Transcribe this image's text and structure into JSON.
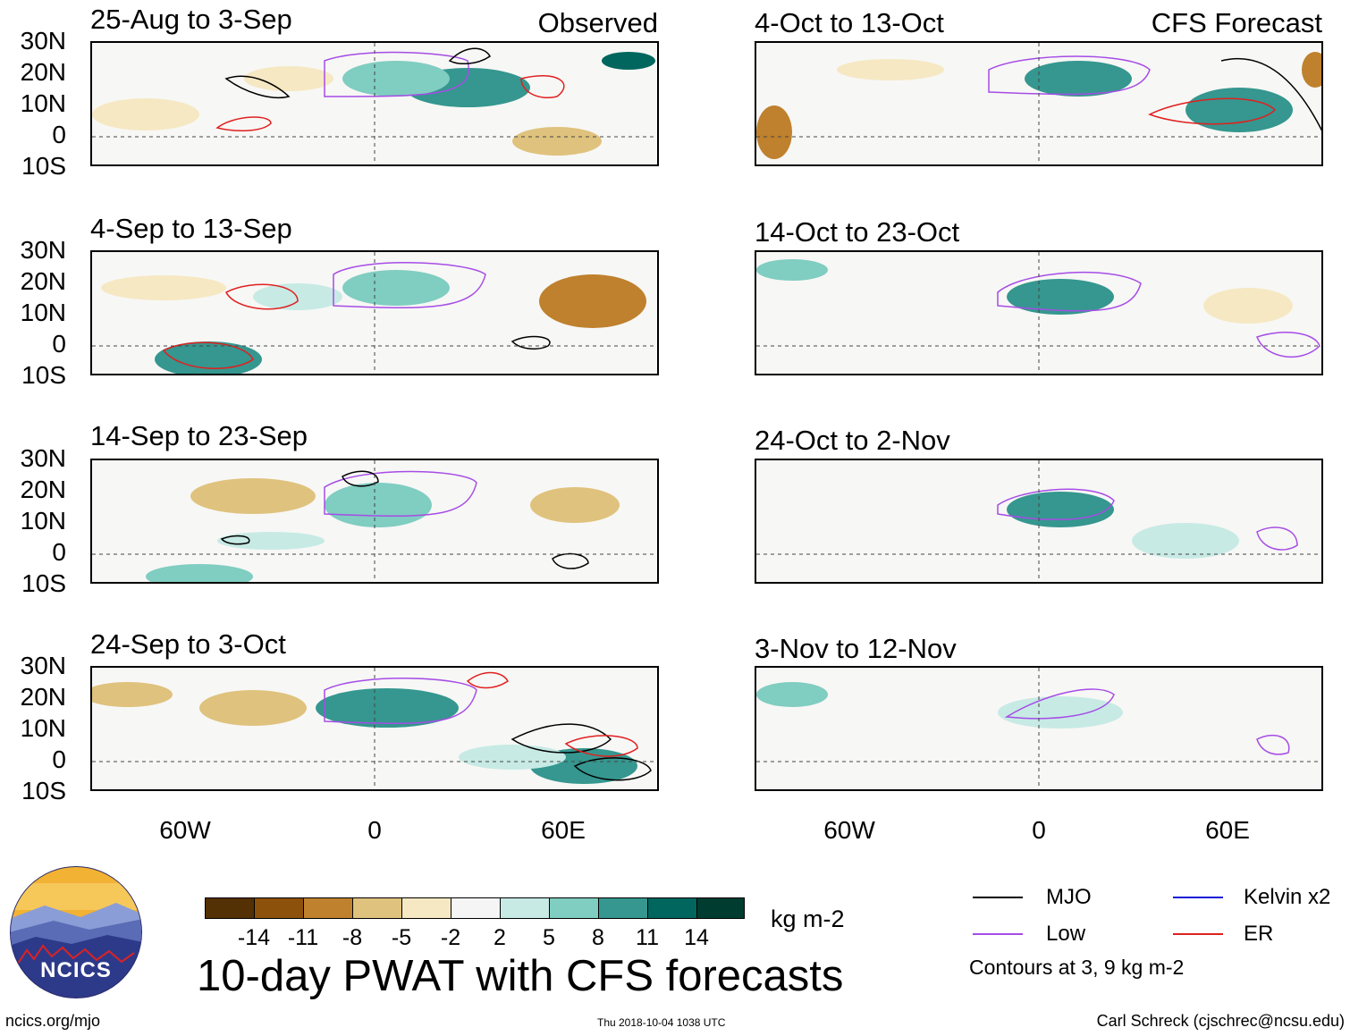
{
  "header": {
    "observed_label": "Observed",
    "forecast_label": "CFS Forecast"
  },
  "panels": {
    "left": [
      "25-Aug to 3-Sep",
      "4-Sep to 13-Sep",
      "14-Sep to 23-Sep",
      "24-Sep to 3-Oct"
    ],
    "right": [
      "4-Oct to 13-Oct",
      "14-Oct to 23-Oct",
      "24-Oct to 2-Nov",
      "3-Nov to 12-Nov"
    ]
  },
  "axes": {
    "lat_labels": [
      "30N",
      "20N",
      "10N",
      "0",
      "10S"
    ],
    "lon_labels": [
      "60W",
      "0",
      "60E"
    ]
  },
  "colorbar": {
    "colors": [
      "#543005",
      "#8c510a",
      "#bf812d",
      "#dfc27d",
      "#f6e8c3",
      "#f5f5f5",
      "#c7eae5",
      "#80cdc1",
      "#35978f",
      "#01665e",
      "#003c30"
    ],
    "labels": [
      "-14",
      "-11",
      "-8",
      "-5",
      "-2",
      "2",
      "5",
      "8",
      "11",
      "14"
    ],
    "units": "kg m-2"
  },
  "main_title": "10-day PWAT with CFS forecasts",
  "legend": {
    "items": [
      {
        "label": "MJO",
        "color": "#000000"
      },
      {
        "label": "Kelvin x2",
        "color": "#1a1ad9"
      },
      {
        "label": "Low",
        "color": "#a64ce6"
      },
      {
        "label": "ER",
        "color": "#e02020"
      }
    ],
    "note": "Contours at 3, 9 kg m-2"
  },
  "logo_text": "NCICS",
  "footer": {
    "url": "ncics.org/mjo",
    "timestamp": "Thu 2018-10-04 1038 UTC",
    "credit": "Carl Schreck (cjschrec@ncsu.edu)"
  }
}
